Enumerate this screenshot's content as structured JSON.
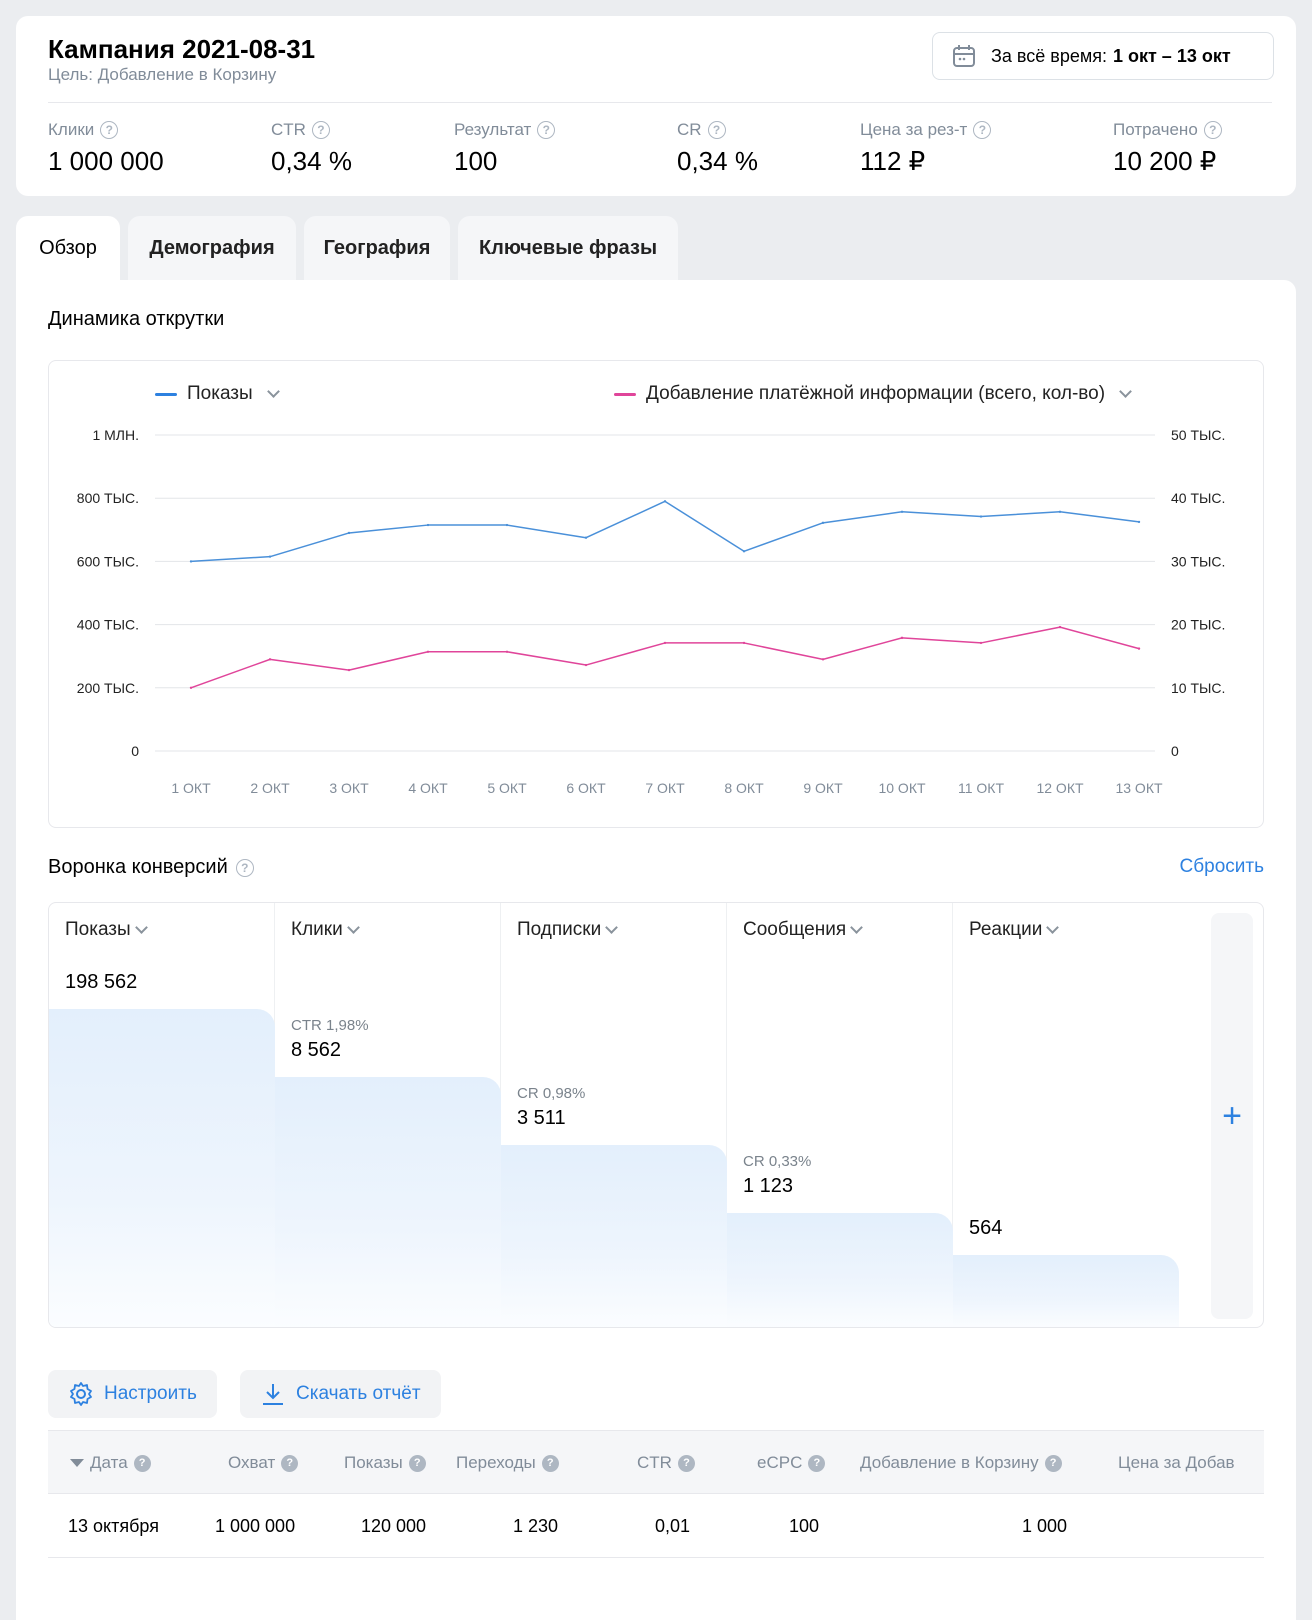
{
  "header": {
    "title": "Кампания 2021-08-31",
    "goal": "Цель: Добавление в Корзину",
    "date_prefix": "За всё время:",
    "date_range": "1 окт  – 13 окт"
  },
  "metrics": [
    {
      "label": "Клики",
      "value": "1 000 000"
    },
    {
      "label": "CTR",
      "value": "0,34 %"
    },
    {
      "label": "Результат",
      "value": "100"
    },
    {
      "label": "CR",
      "value": "0,34 %"
    },
    {
      "label": "Цена за рез-т",
      "value": "112 ₽"
    },
    {
      "label": "Потрачено",
      "value": "10 200 ₽"
    }
  ],
  "tabs": [
    {
      "label": "Обзор",
      "active": true
    },
    {
      "label": "Демография"
    },
    {
      "label": "География"
    },
    {
      "label": "Ключевые фразы"
    }
  ],
  "dynamics": {
    "title": "Динамика открутки"
  },
  "chart_data": {
    "type": "line",
    "x": [
      "1 ОКТ",
      "2 ОКТ",
      "3 ОКТ",
      "4 ОКТ",
      "5 ОКТ",
      "6 ОКТ",
      "7 ОКТ",
      "8 ОКТ",
      "9 ОКТ",
      "10 ОКТ",
      "11 ОКТ",
      "12 ОКТ",
      "13 ОКТ"
    ],
    "left_ticks": [
      "0",
      "200 ТЫС.",
      "400 ТЫС.",
      "600 ТЫС.",
      "800 ТЫС.",
      "1 МЛН."
    ],
    "right_ticks": [
      "0",
      "10 ТЫС.",
      "20 ТЫС.",
      "30 ТЫС.",
      "40 ТЫС.",
      "50 ТЫС."
    ],
    "left_ylim": [
      0,
      1000000
    ],
    "right_ylim": [
      0,
      50000
    ],
    "grid": true,
    "legend_position": "top",
    "series": [
      {
        "name": "Показы",
        "axis": "left",
        "color": "#4a90d9",
        "values": [
          600000,
          615000,
          690000,
          715000,
          715000,
          675000,
          790000,
          632000,
          722000,
          757000,
          742000,
          757000,
          725000
        ]
      },
      {
        "name": "Добавление платёжной информации (всего, кол-во)",
        "axis": "right",
        "color": "#e0459a",
        "values": [
          10000,
          14500,
          12800,
          15700,
          15700,
          13600,
          17100,
          17100,
          14500,
          17900,
          17100,
          19600,
          16200
        ]
      }
    ]
  },
  "funnel": {
    "title": "Воронка конверсий",
    "reset": "Сбросить",
    "add_symbol": "+",
    "steps": [
      {
        "name": "Показы",
        "meta": "",
        "value": "198 562"
      },
      {
        "name": "Клики",
        "meta": "CTR 1,98%",
        "value": "8 562"
      },
      {
        "name": "Подписки",
        "meta": "CR 0,98%",
        "value": "3 511"
      },
      {
        "name": "Сообщения",
        "meta": "CR 0,33%",
        "value": "1 123"
      },
      {
        "name": "Реакции",
        "meta": "",
        "value": "564"
      }
    ]
  },
  "actions": {
    "configure": "Настроить",
    "download": "Скачать отчёт"
  },
  "table": {
    "columns": [
      "Дата",
      "Охват",
      "Показы",
      "Переходы",
      "CTR",
      "eCPC",
      "Добавление в Корзину",
      "Цена за Добав"
    ],
    "rows": [
      [
        "13 октября",
        "1 000 000",
        "120 000",
        "1 230",
        "0,01",
        "100",
        "1 000",
        ""
      ]
    ]
  }
}
